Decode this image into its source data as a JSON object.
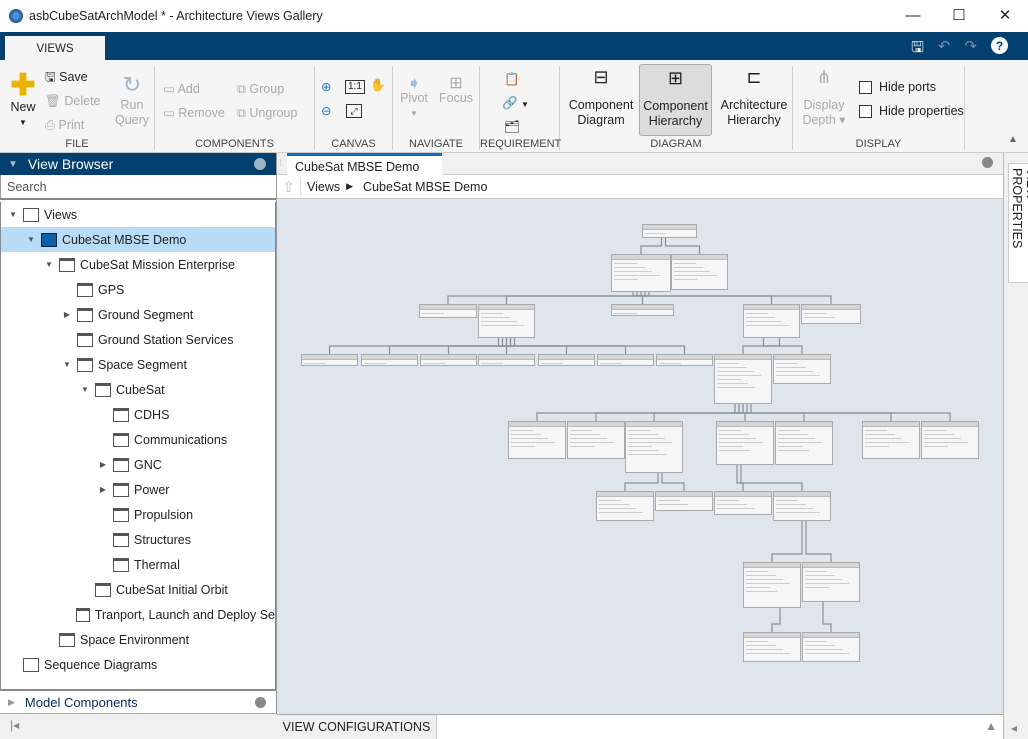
{
  "window": {
    "title": "asbCubeSatArchModel * - Architecture Views Gallery",
    "minimize": "—",
    "maximize": "☐",
    "close": "✕"
  },
  "ribbon": {
    "tab": "VIEWS",
    "file": {
      "label": "FILE",
      "new": "New",
      "save": "Save",
      "delete": "Delete",
      "print": "Print",
      "run": "Run",
      "query": "Query"
    },
    "components": {
      "label": "COMPONENTS",
      "add": "Add",
      "remove": "Remove",
      "group": "Group",
      "ungroup": "Ungroup"
    },
    "canvas": {
      "label": "CANVAS",
      "one_to_one": "1:1"
    },
    "navigate": {
      "label": "NAVIGATE",
      "pivot": "Pivot",
      "focus": "Focus"
    },
    "requirement": {
      "label": "REQUIREMENT"
    },
    "diagram": {
      "label": "DIAGRAM",
      "component_diagram": [
        "Component",
        "Diagram"
      ],
      "component_hierarchy": [
        "Component",
        "Hierarchy"
      ],
      "architecture_hierarchy": [
        "Architecture",
        "Hierarchy"
      ],
      "selected": "Component Hierarchy"
    },
    "display": {
      "label": "DISPLAY",
      "display_depth": [
        "Display",
        "Depth"
      ],
      "hide_ports": "Hide ports",
      "hide_properties": "Hide properties",
      "hide_ports_checked": false,
      "hide_properties_checked": false
    }
  },
  "view_browser": {
    "title": "View Browser",
    "search_placeholder": "Search",
    "items": [
      {
        "label": "Views",
        "level": 0,
        "expander": "open",
        "icon": "views-icon"
      },
      {
        "label": "CubeSat MBSE Demo",
        "level": 1,
        "expander": "open",
        "icon": "filter-view-icon",
        "selected": true
      },
      {
        "label": "CubeSat Mission Enterprise",
        "level": 2,
        "expander": "open",
        "icon": "component-icon"
      },
      {
        "label": "GPS",
        "level": 3,
        "expander": "none",
        "icon": "component-icon"
      },
      {
        "label": "Ground Segment",
        "level": 3,
        "expander": "closed",
        "icon": "component-icon"
      },
      {
        "label": "Ground Station Services",
        "level": 3,
        "expander": "none",
        "icon": "component-icon"
      },
      {
        "label": "Space Segment",
        "level": 3,
        "expander": "open",
        "icon": "component-icon"
      },
      {
        "label": "CubeSat",
        "level": 4,
        "expander": "open",
        "icon": "component-icon"
      },
      {
        "label": "CDHS",
        "level": 5,
        "expander": "none",
        "icon": "component-icon"
      },
      {
        "label": "Communications",
        "level": 5,
        "expander": "none",
        "icon": "component-icon"
      },
      {
        "label": "GNC",
        "level": 5,
        "expander": "closed",
        "icon": "component-icon"
      },
      {
        "label": "Power",
        "level": 5,
        "expander": "closed",
        "icon": "component-icon"
      },
      {
        "label": "Propulsion",
        "level": 5,
        "expander": "none",
        "icon": "component-icon"
      },
      {
        "label": "Structures",
        "level": 5,
        "expander": "none",
        "icon": "component-icon"
      },
      {
        "label": "Thermal",
        "level": 5,
        "expander": "none",
        "icon": "component-icon"
      },
      {
        "label": "CubeSat Initial Orbit",
        "level": 4,
        "expander": "none",
        "icon": "component-icon"
      },
      {
        "label": "Tranport, Launch and Deploy Se",
        "level": 3,
        "expander": "none",
        "icon": "component-icon"
      },
      {
        "label": "Space Environment",
        "level": 2,
        "expander": "none",
        "icon": "simulink-icon"
      },
      {
        "label": "Sequence Diagrams",
        "level": 0,
        "expander": "none",
        "icon": "sequence-diagram-icon"
      }
    ],
    "model_components": "Model Components"
  },
  "editor": {
    "tab": "CubeSat MBSE Demo",
    "breadcrumb": [
      "Views",
      "CubeSat MBSE Demo"
    ],
    "view_configurations": "VIEW CONFIGURATIONS"
  },
  "view_properties": "VIEW PROPERTIES",
  "colors": {
    "accent": "#03406f",
    "selection": "#b8dcf7",
    "canvas": "#dfe5ec"
  }
}
